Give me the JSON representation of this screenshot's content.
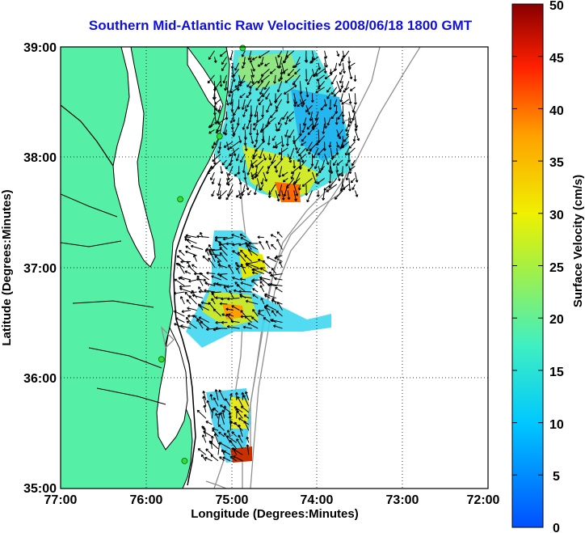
{
  "title": "Southern Mid-Atlantic Raw Velocities 2008/06/18 1800 GMT",
  "x_axis": {
    "label": "Longitude (Degrees:Minutes)",
    "ticks": [
      "77:00",
      "76:00",
      "75:00",
      "74:00",
      "73:00",
      "72:00"
    ]
  },
  "y_axis": {
    "label": "Latitude (Degrees:Minutes)",
    "ticks": [
      "39:00",
      "38:00",
      "37:00",
      "36:00",
      "35:00"
    ]
  },
  "colorbar": {
    "label": "Surface Velocity (cm/s)",
    "ticks": [
      "50",
      "45",
      "40",
      "35",
      "30",
      "25",
      "20",
      "15",
      "10",
      "5",
      "0"
    ],
    "min": 0,
    "max": 50
  },
  "colors": {
    "land": "#55f0a6",
    "title": "#1010dd",
    "coast": "#000000",
    "bathymetry": "#909090",
    "station": "#33dd33"
  },
  "grid": "dotted",
  "stations": [
    {
      "lon": -74.87,
      "lat": 38.99
    },
    {
      "lon": -75.14,
      "lat": 38.19
    },
    {
      "lon": -75.6,
      "lat": 37.62
    },
    {
      "lon": -75.82,
      "lat": 36.17
    },
    {
      "lon": -75.55,
      "lat": 35.25
    }
  ],
  "velocity_regions": [
    {
      "name": "north",
      "lon": [
        -75.2,
        -73.52
      ],
      "lat": [
        37.7,
        39.0
      ]
    },
    {
      "name": "middle",
      "lon": [
        -75.55,
        -74.35
      ],
      "lat": [
        36.45,
        37.3
      ]
    },
    {
      "name": "south",
      "lon": [
        -75.3,
        -74.75
      ],
      "lat": [
        35.25,
        35.85
      ]
    }
  ]
}
